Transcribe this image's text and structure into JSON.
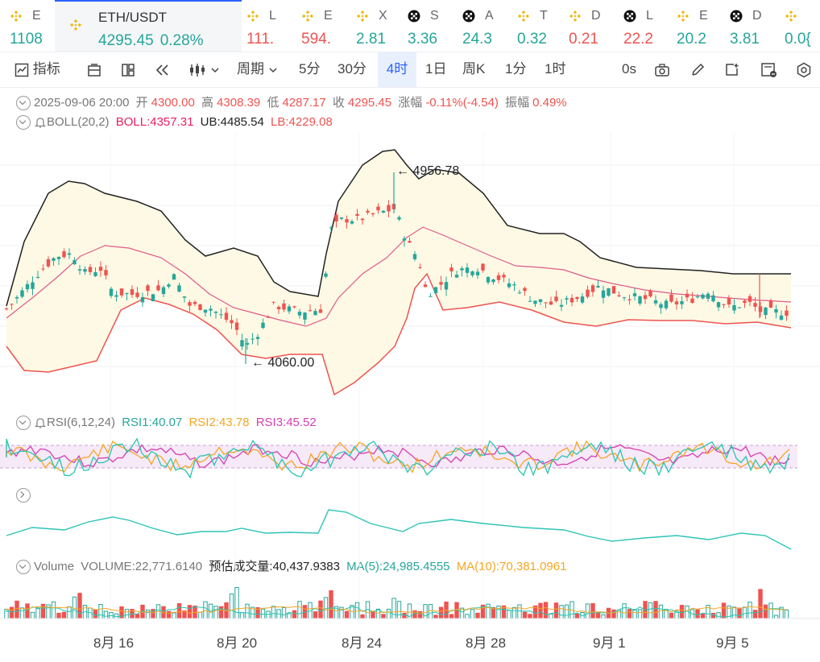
{
  "ticker": [
    {
      "symbol": "E",
      "price": "1108",
      "dir": "up",
      "icon": "binance-icon"
    },
    {
      "symbol": "ETH/USDT",
      "price": "4295.45",
      "change": "0.28%",
      "dir": "up",
      "icon": "binance-icon",
      "active": true
    },
    {
      "symbol": "L",
      "price": "111.",
      "dir": "down",
      "icon": "binance-icon"
    },
    {
      "symbol": "E",
      "price": "594.",
      "dir": "down",
      "icon": "binance-icon"
    },
    {
      "symbol": "X",
      "price": "2.81",
      "dir": "up",
      "icon": "binance-icon"
    },
    {
      "symbol": "S",
      "price": "3.36",
      "dir": "up",
      "icon": "okx-icon"
    },
    {
      "symbol": "A",
      "price": "24.3",
      "dir": "up",
      "icon": "okx-icon"
    },
    {
      "symbol": "T",
      "price": "0.32",
      "dir": "up",
      "icon": "binance-icon"
    },
    {
      "symbol": "D",
      "price": "0.21",
      "dir": "down",
      "icon": "binance-icon"
    },
    {
      "symbol": "L",
      "price": "22.2",
      "dir": "down",
      "icon": "okx-icon"
    },
    {
      "symbol": "E",
      "price": "20.2",
      "dir": "up",
      "icon": "binance-icon"
    },
    {
      "symbol": "D",
      "price": "3.81",
      "dir": "up",
      "icon": "okx-icon"
    },
    {
      "symbol": "",
      "price": "0.0{",
      "dir": "up",
      "icon": "binance-icon"
    }
  ],
  "toolbar": {
    "indicators": "指标",
    "period": "周期",
    "intervals": [
      "5分",
      "30分",
      "4时",
      "1日",
      "周K",
      "1分",
      "1时"
    ],
    "selected_interval": "4时",
    "countdown": "0s"
  },
  "ohlc": {
    "date": "2025-09-06 20:00",
    "open_label": "开",
    "open": "4300.00",
    "high_label": "高",
    "high": "4308.39",
    "low_label": "低",
    "low": "4287.17",
    "close_label": "收",
    "close": "4295.45",
    "change_label": "涨幅",
    "change": "-0.11%(-4.54)",
    "amp_label": "振幅",
    "amp": "0.49%"
  },
  "boll": {
    "name": "BOLL(20,2)",
    "mid": "BOLL:4357.31",
    "ub": "UB:4485.54",
    "lb": "LB:4229.08"
  },
  "rsi": {
    "name": "RSI(6,12,24)",
    "rsi1": "RSI1:40.07",
    "rsi2": "RSI2:43.78",
    "rsi3": "RSI3:45.52"
  },
  "volume": {
    "name": "Volume",
    "value": "VOLUME:22,771.6140",
    "est": "预估成交量:40,437.9383",
    "ma5": "MA(5):24,985.4555",
    "ma10": "MA(10):70,381.0961"
  },
  "annotations": {
    "high": "4956.78",
    "low": "4060.00"
  },
  "x_labels": [
    "8月 16",
    "8月 20",
    "8月 24",
    "8月 28",
    "9月 1",
    "9月 5"
  ],
  "colors": {
    "up": "#26a69a",
    "down": "#ef5350",
    "ub_lb": "#222222",
    "mid": "#e05a8a",
    "band": "#fdf9e4",
    "accent": "#2962ff"
  },
  "chart_data": {
    "type": "candlestick",
    "x_range": [
      "2025-08-13",
      "2025-09-06"
    ],
    "y_high_marker": 4956.78,
    "y_low_marker": 4060.0,
    "last_close": 4295.45,
    "boll_last": {
      "mid": 4357.31,
      "ub": 4485.54,
      "lb": 4229.08
    },
    "rsi_last": {
      "rsi1": 40.07,
      "rsi2": 43.78,
      "rsi3": 45.52
    },
    "volume_last": 22771.614,
    "volume_ma5": 24985.4555,
    "volume_ma10": 70381.0961
  }
}
